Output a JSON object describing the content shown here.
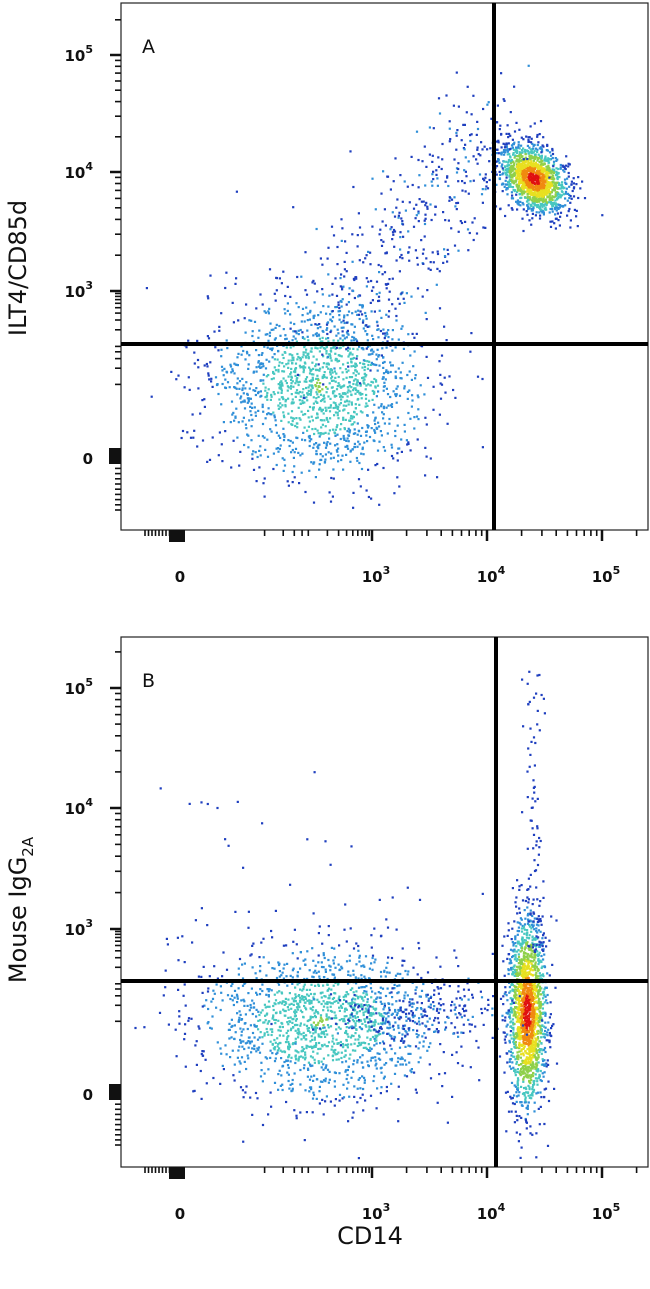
{
  "chart_data": [
    {
      "type": "scatter",
      "panel_label": "A",
      "xlabel": "CD14",
      "ylabel": "ILT4/CD85d",
      "x_scale": "biexponential",
      "y_scale": "biexponential",
      "x_ticks": [
        {
          "value": 0,
          "base": "0",
          "exp": ""
        },
        {
          "value": 1000,
          "base": "10",
          "exp": "3"
        },
        {
          "value": 10000,
          "base": "10",
          "exp": "4"
        },
        {
          "value": 100000,
          "base": "10",
          "exp": "5"
        }
      ],
      "y_ticks": [
        {
          "value": 0,
          "base": "0",
          "exp": ""
        },
        {
          "value": 1000,
          "base": "10",
          "exp": "3"
        },
        {
          "value": 10000,
          "base": "10",
          "exp": "4"
        },
        {
          "value": 100000,
          "base": "10",
          "exp": "5"
        }
      ],
      "quadrant_gate": {
        "x": 13000,
        "y": 400
      },
      "populations": [
        {
          "center": [
            150,
            20
          ],
          "spread": [
            0.45,
            0.42
          ],
          "count": 1500,
          "density": "medium"
        },
        {
          "center": [
            25000,
            9000
          ],
          "spread": [
            0.13,
            0.14
          ],
          "count": 1500,
          "density": "high"
        },
        {
          "trail_from": [
            200,
            150
          ],
          "trail_to": [
            12000,
            25000
          ],
          "count": 450,
          "density": "low"
        }
      ],
      "density_colormap": [
        "#1f3fbf",
        "#2f8fd8",
        "#47c7c0",
        "#8fd04a",
        "#e8e020",
        "#f08a10",
        "#e01010"
      ],
      "grid": false
    },
    {
      "type": "scatter",
      "panel_label": "B",
      "xlabel": "CD14",
      "ylabel_main": "Mouse IgG",
      "ylabel_sub": "2A",
      "x_scale": "biexponential",
      "y_scale": "biexponential",
      "x_ticks": [
        {
          "value": 0,
          "base": "0",
          "exp": ""
        },
        {
          "value": 1000,
          "base": "10",
          "exp": "3"
        },
        {
          "value": 10000,
          "base": "10",
          "exp": "4"
        },
        {
          "value": 100000,
          "base": "10",
          "exp": "5"
        }
      ],
      "y_ticks": [
        {
          "value": 0,
          "base": "0",
          "exp": ""
        },
        {
          "value": 1000,
          "base": "10",
          "exp": "3"
        },
        {
          "value": 10000,
          "base": "10",
          "exp": "4"
        },
        {
          "value": 100000,
          "base": "10",
          "exp": "5"
        }
      ],
      "quadrant_gate": {
        "x": 13000,
        "y": 400
      },
      "populations": [
        {
          "center": [
            150,
            20
          ],
          "spread": [
            0.5,
            0.35
          ],
          "count": 1500,
          "density": "medium"
        },
        {
          "center": [
            22000,
            30
          ],
          "spread": [
            0.08,
            0.4
          ],
          "count": 1700,
          "density": "high"
        },
        {
          "trail_from": [
            500,
            20
          ],
          "trail_to": [
            12000,
            40
          ],
          "count": 250,
          "density": "low"
        },
        {
          "vertical_tail_at": 25000,
          "from": 400,
          "to": 150000,
          "count": 90,
          "density": "low"
        }
      ],
      "density_colormap": [
        "#1f3fbf",
        "#2f8fd8",
        "#47c7c0",
        "#8fd04a",
        "#e8e020",
        "#f08a10",
        "#e01010"
      ],
      "grid": false
    }
  ]
}
